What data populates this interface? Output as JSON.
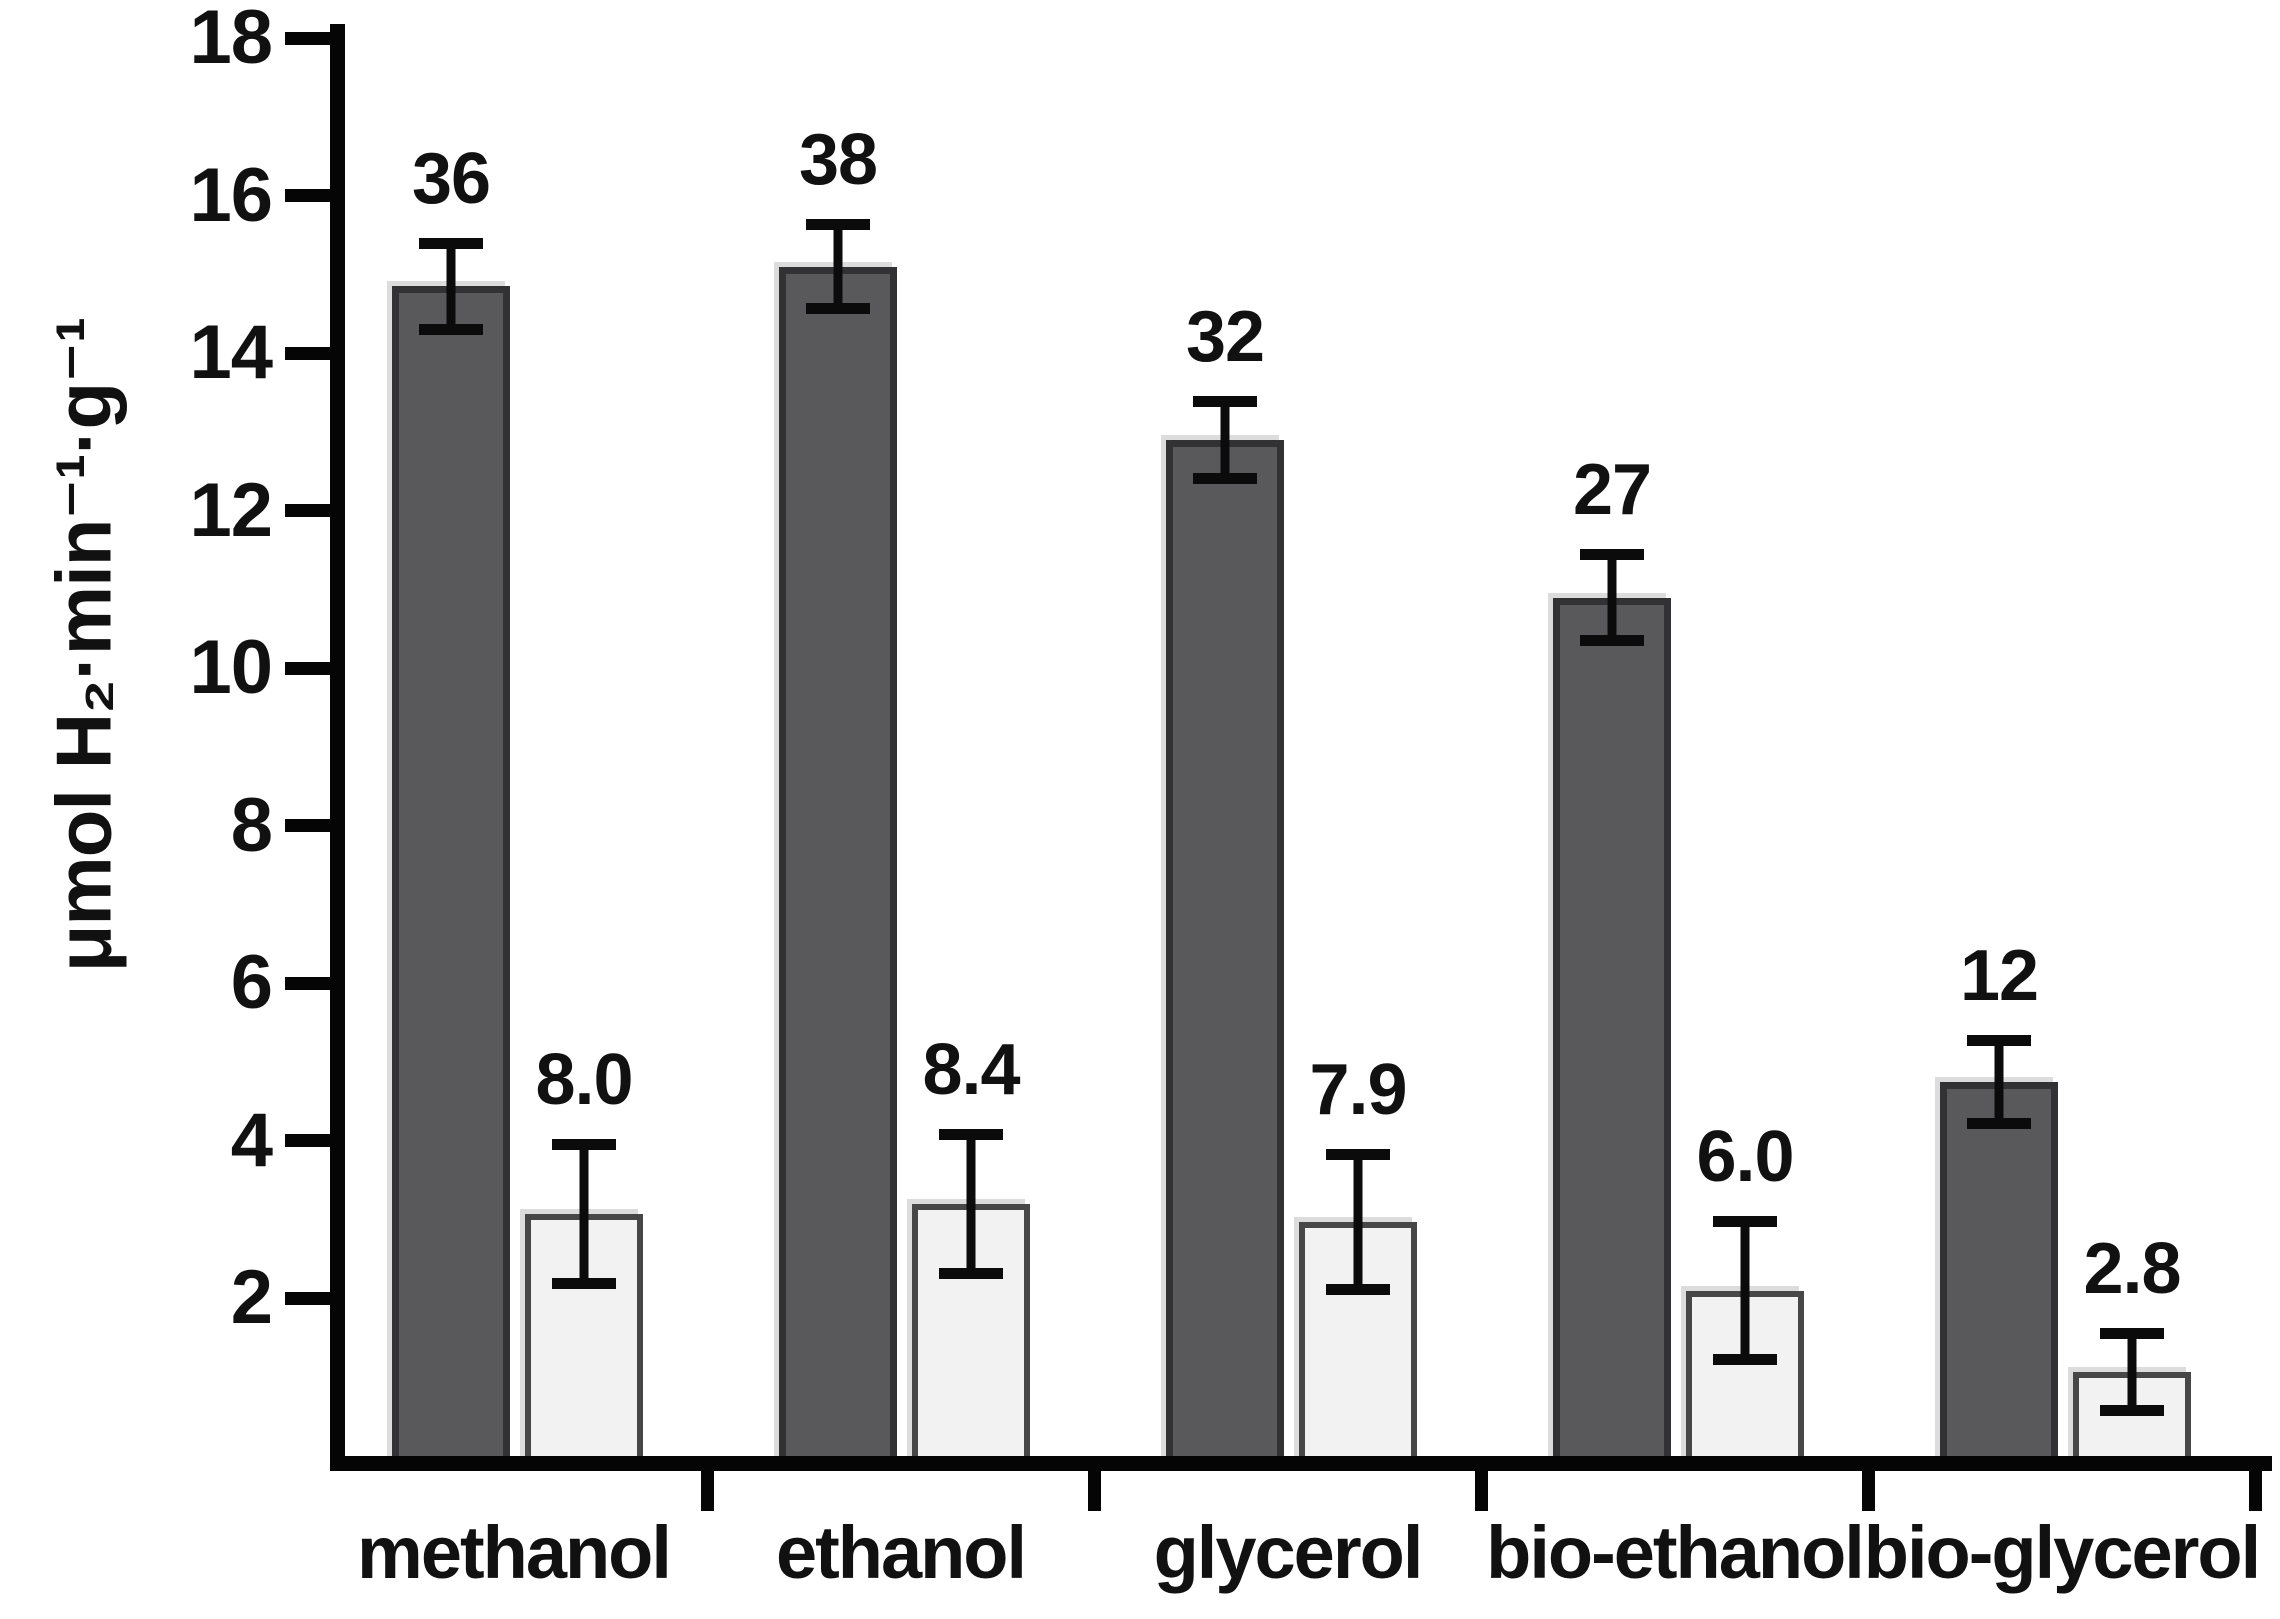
{
  "figure": {
    "background": "#ffffff"
  },
  "chart_data": {
    "type": "bar",
    "title": "",
    "ylabel": "μmol H₂·min⁻¹·g⁻¹",
    "xlabel": "",
    "ylim": [
      0,
      18
    ],
    "yticks": [
      2,
      4,
      6,
      8,
      10,
      12,
      14,
      16,
      18
    ],
    "grid": false,
    "legend": "none",
    "categories": [
      "methanol",
      "ethanol",
      "glycerol",
      "bio-ethanol",
      "bio-glycerol"
    ],
    "series": [
      {
        "name": "dark",
        "fill": "#59595b",
        "border": "#323234",
        "values": [
          14.85,
          15.1,
          12.9,
          10.9,
          4.75
        ],
        "errors": [
          0.62,
          0.6,
          0.56,
          0.62,
          0.6
        ],
        "labels": [
          "36",
          "38",
          "32",
          "27",
          "12"
        ]
      },
      {
        "name": "light",
        "fill": "#f2f2f2",
        "border": "#474747",
        "values": [
          3.07,
          3.2,
          2.97,
          2.1,
          1.07
        ],
        "errors": [
          0.95,
          0.95,
          0.93,
          0.95,
          0.56
        ],
        "labels": [
          "8.0",
          "8.4",
          "7.9",
          "6.0",
          "2.8"
        ]
      }
    ],
    "error_bar_color": "#0b0b0b",
    "axis_color": "#050505",
    "text_color": "#111111"
  }
}
